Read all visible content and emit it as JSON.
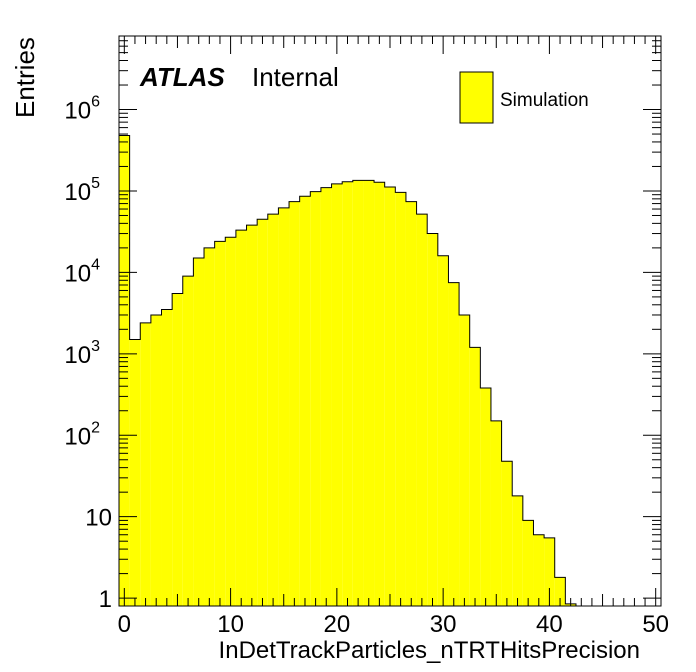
{
  "chart_data": {
    "type": "bar",
    "style": "histogram",
    "xlabel": "InDetTrackParticles_nTRTHitsPrecision",
    "ylabel": "Entries",
    "xlim": [
      -0.5,
      50.5
    ],
    "ylim": [
      0.8,
      8000000
    ],
    "log_y": true,
    "grid": false,
    "fill_color": "#ffff00",
    "edge_color": "#000000",
    "x_ticks": [
      "0",
      "10",
      "20",
      "30",
      "40",
      "50"
    ],
    "y_ticks": [
      {
        "label": "1",
        "value": 1
      },
      {
        "label": "10",
        "value": 10
      },
      {
        "label": "10",
        "exp": "2",
        "value": 100
      },
      {
        "label": "10",
        "exp": "3",
        "value": 1000
      },
      {
        "label": "10",
        "exp": "4",
        "value": 10000
      },
      {
        "label": "10",
        "exp": "5",
        "value": 100000
      },
      {
        "label": "10",
        "exp": "6",
        "value": 1000000
      }
    ],
    "bin_width": 1,
    "bins_start": -0.5,
    "values": [
      480000,
      1500,
      2400,
      3000,
      3500,
      5500,
      9000,
      15000,
      20000,
      24000,
      27000,
      33000,
      38000,
      45000,
      52000,
      62000,
      74000,
      86000,
      98000,
      110000,
      122000,
      130000,
      135000,
      135000,
      128000,
      112000,
      96000,
      74000,
      52000,
      30000,
      16000,
      7500,
      3000,
      1200,
      380,
      150,
      48,
      18,
      9,
      6,
      5.5,
      1.8,
      0.85
    ],
    "series": [
      {
        "name": "Simulation",
        "color": "#ffff00"
      }
    ],
    "legend_position": "top-right",
    "annotations": {
      "experiment": "ATLAS",
      "status": "Internal"
    }
  }
}
